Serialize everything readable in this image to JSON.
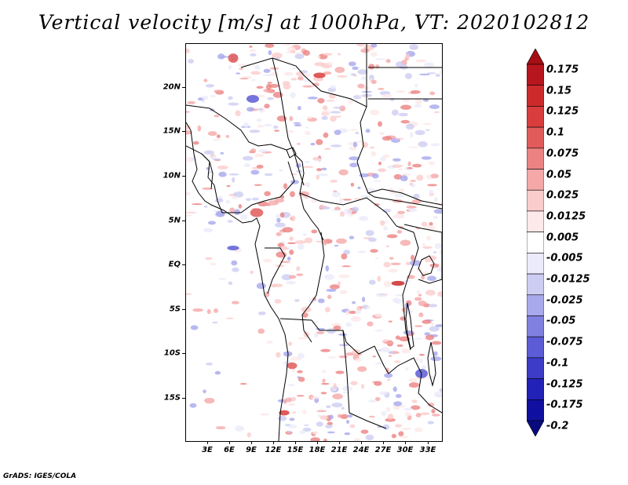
{
  "title": "Vertical velocity [m/s] at 1000hPa, VT: 2020102812",
  "footer": "GrADS: IGES/COLA",
  "map": {
    "projection": "lat-lon",
    "lon_range": [
      0,
      35
    ],
    "lat_range": [
      -20,
      25
    ],
    "lat_labels": [
      "20N",
      "15N",
      "10N",
      "5N",
      "EQ",
      "5S",
      "10S",
      "15S"
    ],
    "lon_labels": [
      "3E",
      "6E",
      "9E",
      "12E",
      "15E",
      "18E",
      "21E",
      "24E",
      "27E",
      "30E",
      "33E"
    ],
    "field": "vertical velocity",
    "units": "m/s",
    "level": "1000hPa",
    "valid_time": "2020102812"
  },
  "colorbar": {
    "orientation": "vertical",
    "triangular_ends": true,
    "levels": [
      "0.175",
      "0.15",
      "0.125",
      "0.1",
      "0.075",
      "0.05",
      "0.025",
      "0.0125",
      "0.005",
      "-0.005",
      "-0.0125",
      "-0.025",
      "-0.05",
      "-0.075",
      "-0.1",
      "-0.125",
      "-0.175",
      "-0.2"
    ],
    "colors": [
      "#a50f15",
      "#b8161e",
      "#cb2b2b",
      "#d93d3d",
      "#e25b5b",
      "#ec8282",
      "#f5a8a8",
      "#fbcccc",
      "#fde9e9",
      "#ffffff",
      "#ebebfb",
      "#cdcdf3",
      "#a8a8ec",
      "#8080e0",
      "#5c5cd6",
      "#3c3cc8",
      "#2222b8",
      "#1010a0",
      "#0a0a80"
    ]
  }
}
